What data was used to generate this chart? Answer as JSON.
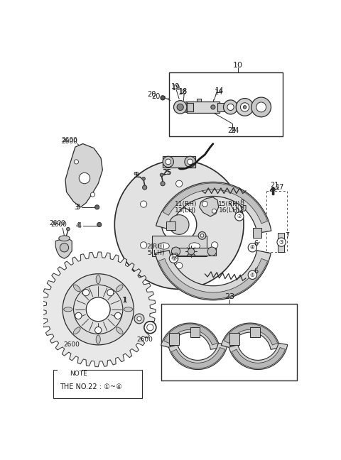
{
  "bg_color": "#ffffff",
  "line_color": "#2a2a2a",
  "fig_width": 4.8,
  "fig_height": 6.48,
  "dpi": 100,
  "xlim": [
    0,
    480
  ],
  "ylim": [
    0,
    648
  ]
}
